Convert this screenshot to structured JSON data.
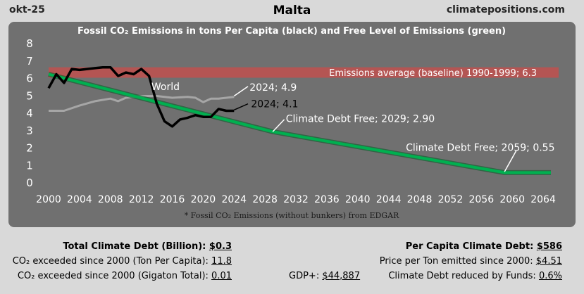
{
  "header": {
    "date": "okt-25",
    "country": "Malta",
    "site": "climatepositions.com"
  },
  "chart_data": {
    "type": "line",
    "title": "Fossil CO₂ Emissions in tons Per Capita (black) and Free Level of Emissions (green)",
    "footnote": "* Fossil CO₂ Emissions (without bunkers) from EDGAR",
    "xlim": [
      2000,
      2066
    ],
    "ylim": [
      0,
      8
    ],
    "x_ticks": [
      2000,
      2004,
      2008,
      2012,
      2016,
      2020,
      2024,
      2028,
      2032,
      2036,
      2040,
      2044,
      2048,
      2052,
      2056,
      2060,
      2064
    ],
    "y_ticks": [
      0,
      1,
      2,
      3,
      4,
      5,
      6,
      7,
      8
    ],
    "baseline_band": {
      "label": "Emissions average (baseline) 1990-1999; 6.3",
      "value": 6.3,
      "low": 6.0,
      "high": 6.6,
      "color": "#c0504d"
    },
    "series": [
      {
        "name": "World",
        "color": "#a6a6a6",
        "x": [
          2000,
          2002,
          2004,
          2006,
          2008,
          2009,
          2010,
          2012,
          2014,
          2016,
          2018,
          2019,
          2020,
          2021,
          2022,
          2024
        ],
        "y": [
          4.1,
          4.1,
          4.4,
          4.65,
          4.8,
          4.65,
          4.85,
          4.95,
          4.95,
          4.85,
          4.9,
          4.85,
          4.6,
          4.8,
          4.8,
          4.9
        ]
      },
      {
        "name": "Malta",
        "color": "#000000",
        "x": [
          2000,
          2001,
          2002,
          2003,
          2004,
          2005,
          2006,
          2007,
          2008,
          2009,
          2010,
          2011,
          2012,
          2013,
          2014,
          2015,
          2016,
          2017,
          2018,
          2019,
          2020,
          2021,
          2022,
          2023,
          2024
        ],
        "y": [
          5.4,
          6.2,
          5.7,
          6.5,
          6.45,
          6.5,
          6.55,
          6.6,
          6.6,
          6.1,
          6.3,
          6.2,
          6.5,
          6.1,
          4.5,
          3.5,
          3.2,
          3.6,
          3.7,
          3.85,
          3.75,
          3.75,
          4.2,
          4.1,
          4.1
        ]
      },
      {
        "name": "Free Level of Emissions",
        "color": "#00b050",
        "x": [
          2000,
          2029,
          2059,
          2065
        ],
        "y": [
          6.2,
          2.9,
          0.55,
          0.55
        ]
      }
    ],
    "annotations": {
      "world_label": "World",
      "world_2024": "2024; 4.9",
      "malta_2024": "2024; 4.1",
      "debt_free_2029": "Climate Debt Free; 2029; 2.90",
      "debt_free_2059": "Climate Debt Free; 2059; 0.55"
    }
  },
  "stats": {
    "total_debt_label": "Total Climate Debt (Billion):",
    "total_debt_value": "$0.3",
    "per_capita_exceeded_label": "CO₂ exceeded since 2000 (Ton Per Capita):",
    "per_capita_exceeded_value": "11.8",
    "gigaton_label": "CO₂ exceeded since 2000 (Gigaton Total):",
    "gigaton_value": "0.01",
    "gdp_label": "GDP+:",
    "gdp_value": "$44,887",
    "per_capita_debt_label": "Per Capita Climate Debt:",
    "per_capita_debt_value": "$586",
    "price_label": "Price per Ton emitted since 2000:",
    "price_value": "$4.51",
    "funds_label": "Climate Debt reduced by Funds:",
    "funds_value": "0.6%"
  }
}
